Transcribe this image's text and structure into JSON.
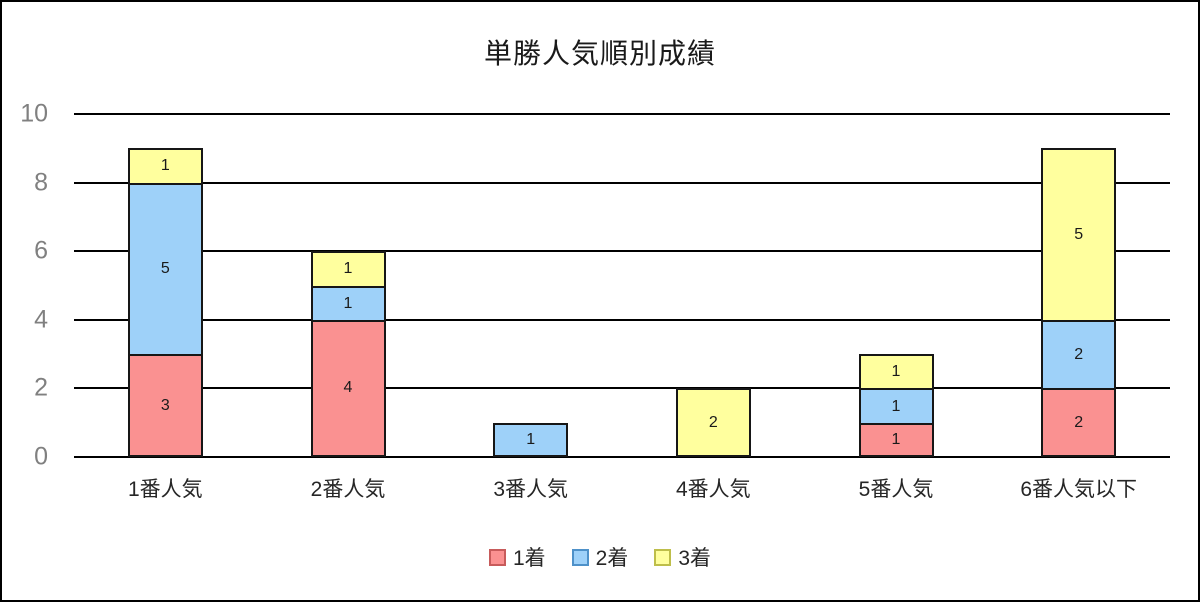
{
  "page": {
    "background": "#ffffff",
    "border_color": "#000000"
  },
  "chart_data": {
    "type": "bar",
    "stacked": true,
    "title": "単勝人気順別成績",
    "categories": [
      "1番人気",
      "2番人気",
      "3番人気",
      "4番人気",
      "5番人気",
      "6番人気以下"
    ],
    "series": [
      {
        "name": "1着",
        "fill": "#FA9191",
        "legend_border": "#C75B5B",
        "values": [
          3,
          4,
          0,
          0,
          1,
          2
        ]
      },
      {
        "name": "2着",
        "fill": "#9ED1F9",
        "legend_border": "#4E91C9",
        "values": [
          5,
          1,
          1,
          0,
          1,
          2
        ]
      },
      {
        "name": "3着",
        "fill": "#FFFF9E",
        "legend_border": "#BEBE4A",
        "values": [
          1,
          1,
          0,
          2,
          1,
          5
        ]
      }
    ],
    "totals": [
      9,
      6,
      1,
      2,
      3,
      9
    ],
    "ylim": [
      0,
      10
    ],
    "yticks": [
      0,
      2,
      4,
      6,
      8,
      10
    ],
    "grid": true,
    "legend_position": "bottom",
    "xlabel": "",
    "ylabel": "",
    "bar_border_color": "#161616",
    "gridline_color": "#000000",
    "ytick_color": "#808080",
    "data_label_color": "#1a1a1a"
  }
}
